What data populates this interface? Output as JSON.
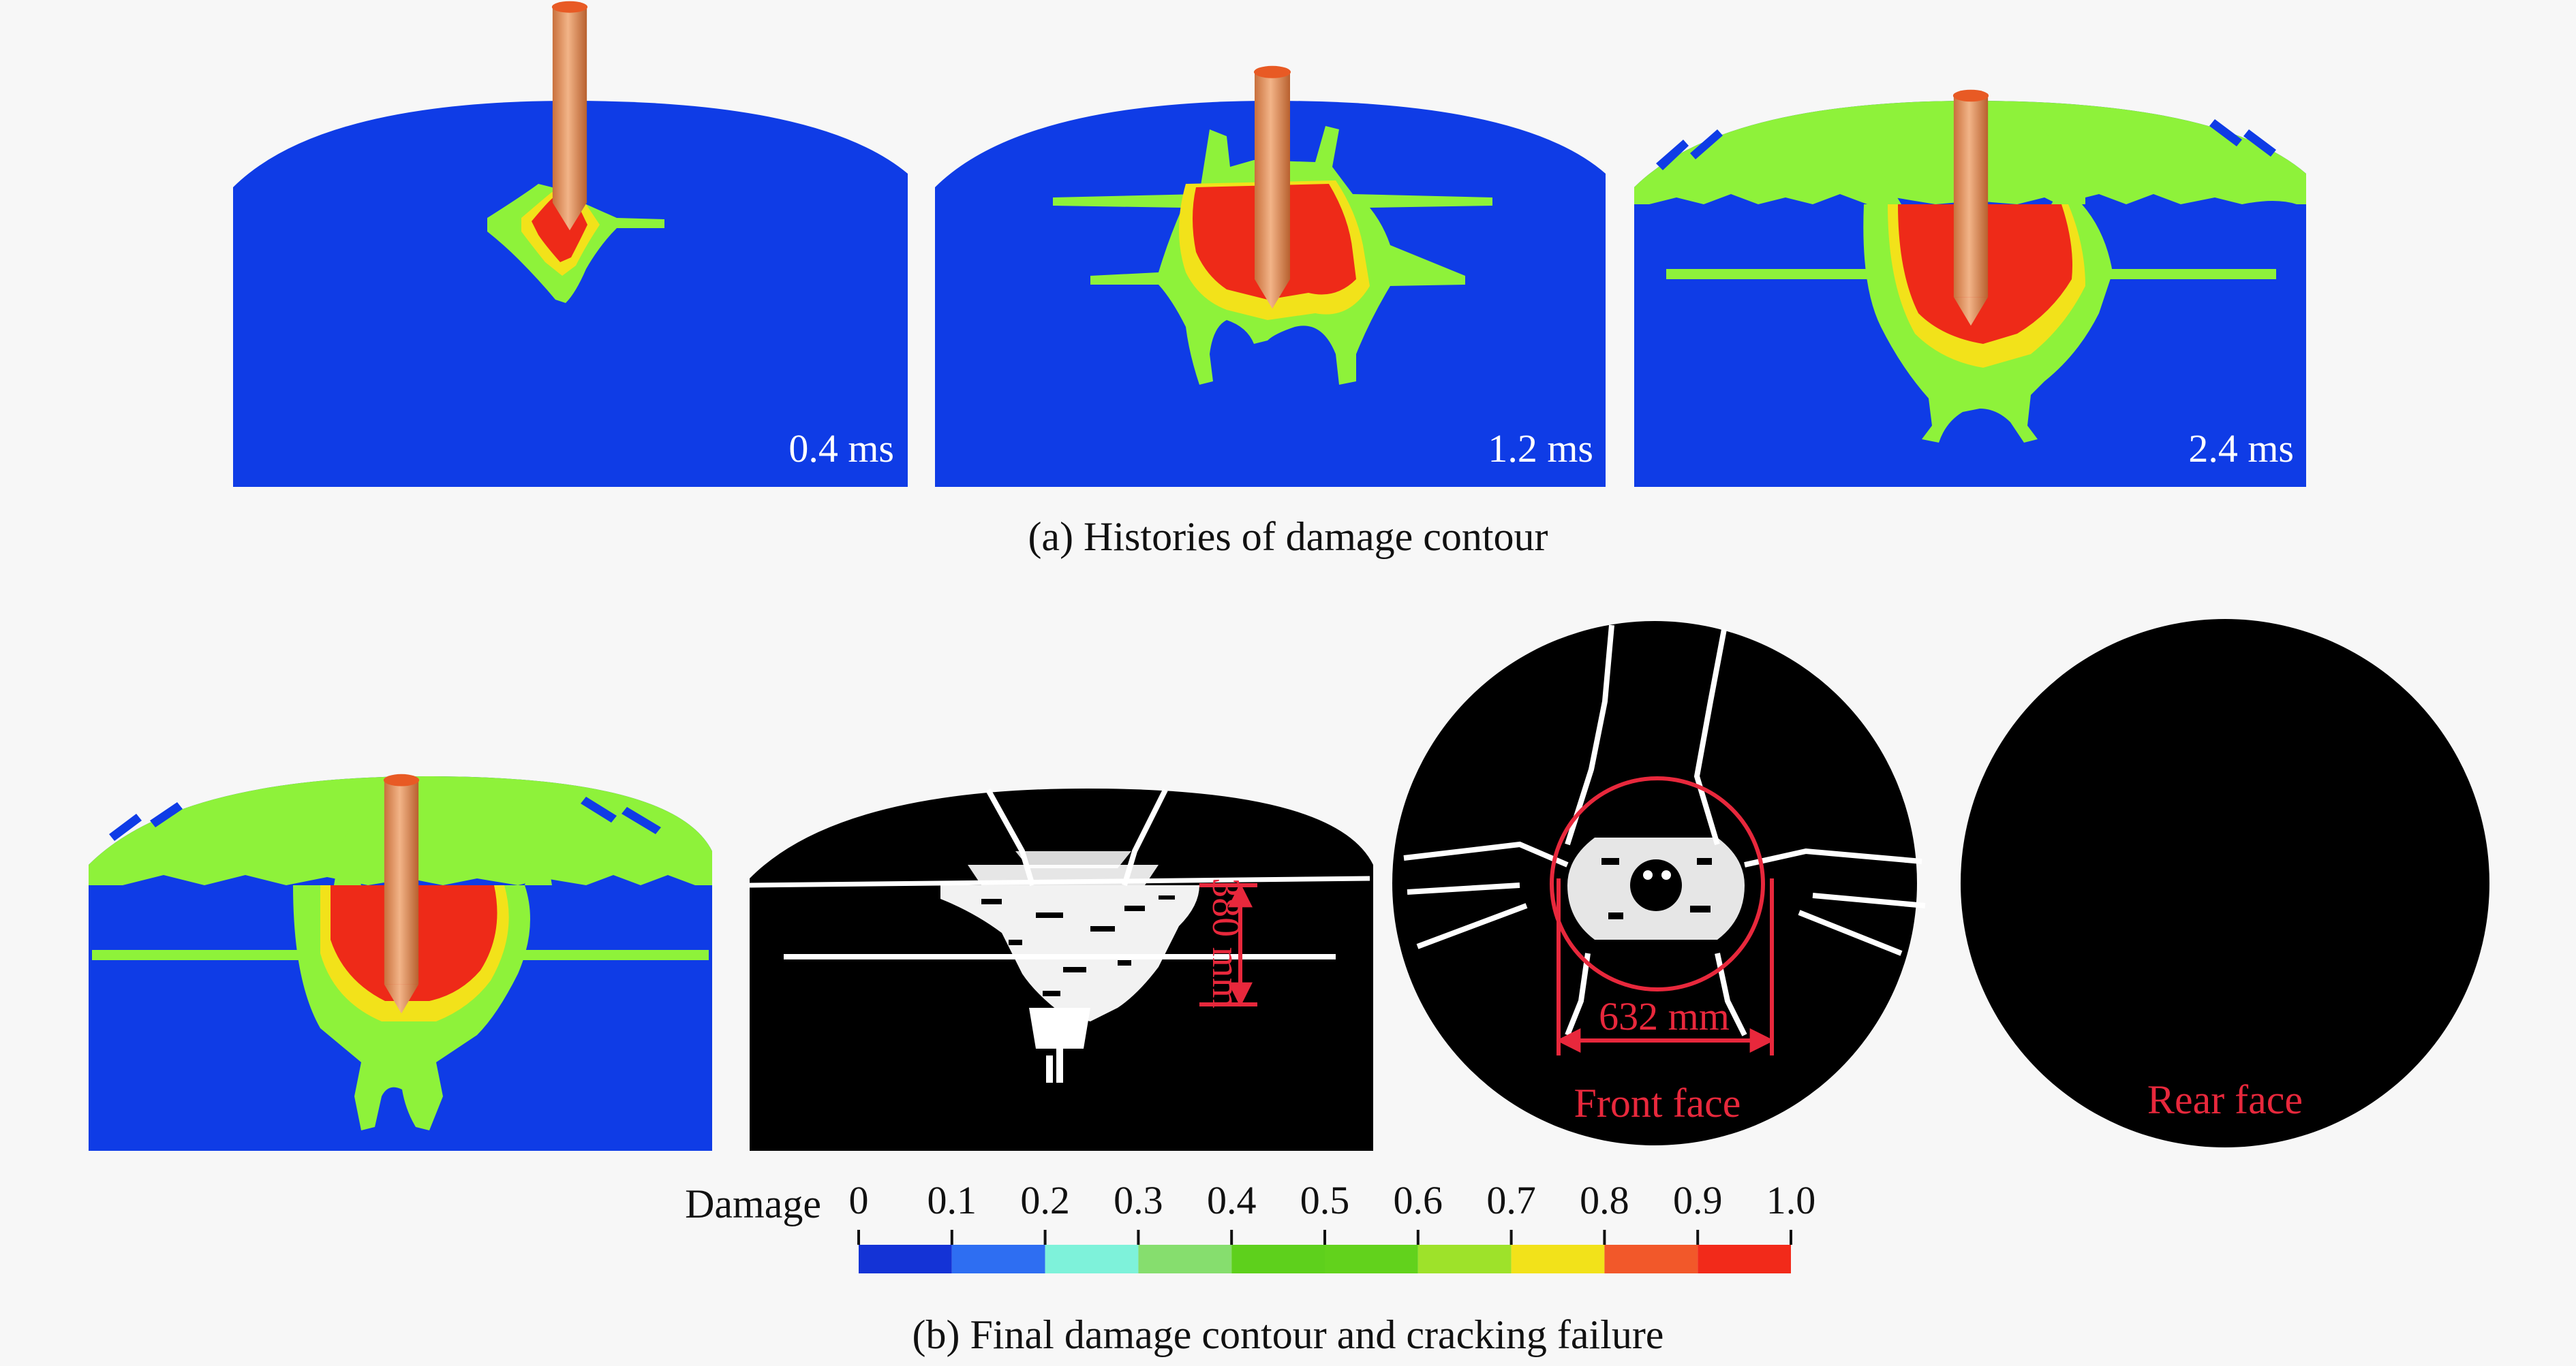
{
  "panel_a": {
    "caption": "(a) Histories of damage contour",
    "frames": [
      {
        "time_label": "0.4 ms"
      },
      {
        "time_label": "1.2 ms"
      },
      {
        "time_label": "2.4 ms"
      }
    ]
  },
  "panel_b": {
    "caption": "(b) Final damage contour and cracking failure",
    "depth_dimension": "380 mm",
    "diameter_dimension": "632 mm",
    "front_face_label": "Front face",
    "rear_face_label": "Rear face"
  },
  "legend": {
    "title": "Damage",
    "ticks": [
      "0",
      "0.1",
      "0.2",
      "0.3",
      "0.4",
      "0.5",
      "0.6",
      "0.7",
      "0.8",
      "0.9",
      "1.0"
    ],
    "colors": [
      "#1433d6",
      "#2e6ef2",
      "#7ef2da",
      "#86de6e",
      "#5ed01c",
      "#62d21c",
      "#9ee22a",
      "#f2e21a",
      "#f2582a",
      "#f22a1a"
    ]
  },
  "colors": {
    "background": "#f7f7f7",
    "undamaged": "#0f3ce6",
    "moderate_damage": "#8ef23a",
    "high_damage": "#ee2a18",
    "projectile": "#e6a06a",
    "crack_map_background": "#000000",
    "crack": "#ffffff",
    "annotation": "#e8283c"
  }
}
